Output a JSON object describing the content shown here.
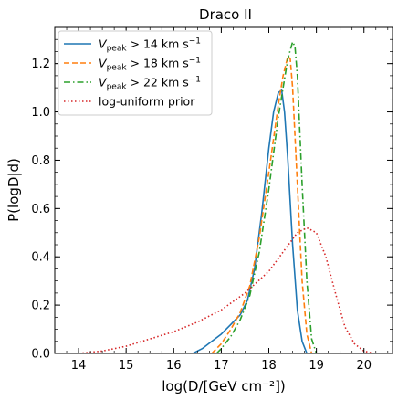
{
  "chart_data": {
    "type": "line",
    "title": "Draco II",
    "xlabel": "log(D/[GeV cm⁻²])",
    "ylabel": "P(logD|d)",
    "xlim": [
      13.5,
      20.6
    ],
    "ylim": [
      0,
      1.35
    ],
    "xticks": [
      14,
      15,
      16,
      17,
      18,
      19,
      20
    ],
    "xtick_labels": [
      "14",
      "15",
      "16",
      "17",
      "18",
      "19",
      "20"
    ],
    "yticks": [
      0.0,
      0.2,
      0.4,
      0.6,
      0.8,
      1.0,
      1.2
    ],
    "ytick_labels": [
      "0.0",
      "0.2",
      "0.4",
      "0.6",
      "0.8",
      "1.0",
      "1.2"
    ],
    "grid": false,
    "legend_position": "top-left",
    "series": [
      {
        "name": "V_peak > 14 km s⁻¹",
        "legend_main": "V",
        "legend_sub": "peak",
        "legend_rest": " > 14 km s",
        "legend_sup": "−1",
        "color": "#1f77b4",
        "dash": "solid",
        "x": [
          16.4,
          16.6,
          16.8,
          17.0,
          17.2,
          17.4,
          17.55,
          17.7,
          17.85,
          18.0,
          18.1,
          18.2,
          18.27,
          18.33,
          18.4,
          18.5,
          18.6,
          18.7,
          18.8
        ],
        "y": [
          0.0,
          0.02,
          0.05,
          0.08,
          0.12,
          0.16,
          0.22,
          0.35,
          0.58,
          0.85,
          1.0,
          1.08,
          1.09,
          1.0,
          0.8,
          0.45,
          0.18,
          0.05,
          0.0
        ]
      },
      {
        "name": "V_peak > 18 km s⁻¹",
        "legend_main": "V",
        "legend_sub": "peak",
        "legend_rest": " > 18 km s",
        "legend_sup": "−1",
        "color": "#ff7f0e",
        "dash": "dashed",
        "x": [
          16.8,
          17.0,
          17.2,
          17.4,
          17.6,
          17.8,
          18.0,
          18.2,
          18.3,
          18.4,
          18.45,
          18.5,
          18.6,
          18.7,
          18.8,
          18.9
        ],
        "y": [
          0.0,
          0.04,
          0.1,
          0.17,
          0.28,
          0.48,
          0.75,
          1.03,
          1.15,
          1.23,
          1.22,
          1.1,
          0.7,
          0.3,
          0.08,
          0.0
        ]
      },
      {
        "name": "V_peak > 22 km s⁻¹",
        "legend_main": "V",
        "legend_sub": "peak",
        "legend_rest": " > 22 km s",
        "legend_sup": "−1",
        "color": "#2ca02c",
        "dash": "dashdot",
        "x": [
          16.9,
          17.0,
          17.2,
          17.4,
          17.6,
          17.8,
          18.0,
          18.2,
          18.4,
          18.5,
          18.55,
          18.6,
          18.7,
          18.8,
          18.9,
          19.0
        ],
        "y": [
          0.0,
          0.02,
          0.07,
          0.14,
          0.24,
          0.42,
          0.68,
          0.98,
          1.22,
          1.29,
          1.27,
          1.15,
          0.7,
          0.3,
          0.06,
          0.0
        ]
      },
      {
        "name": "log-uniform prior",
        "legend_main": "log-uniform prior",
        "legend_sub": "",
        "legend_rest": "",
        "legend_sup": "",
        "color": "#d62728",
        "dash": "dotted",
        "x": [
          13.7,
          14.0,
          14.5,
          15.0,
          15.5,
          16.0,
          16.5,
          17.0,
          17.5,
          18.0,
          18.3,
          18.6,
          18.8,
          19.0,
          19.2,
          19.4,
          19.6,
          19.8,
          20.0,
          20.2,
          20.4
        ],
        "y": [
          0.0,
          0.0,
          0.01,
          0.03,
          0.06,
          0.09,
          0.13,
          0.18,
          0.25,
          0.34,
          0.42,
          0.5,
          0.52,
          0.5,
          0.4,
          0.25,
          0.11,
          0.04,
          0.01,
          0.0,
          0.0
        ]
      }
    ]
  }
}
